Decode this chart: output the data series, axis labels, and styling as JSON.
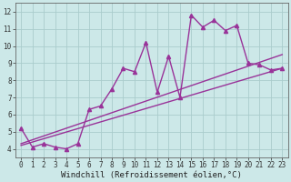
{
  "title": "",
  "xlabel": "Windchill (Refroidissement éolien,°C)",
  "bg_color": "#cce8e8",
  "grid_color": "#aacccc",
  "line_color": "#993399",
  "xlim": [
    -0.5,
    23.5
  ],
  "ylim": [
    3.5,
    12.5
  ],
  "xticks": [
    0,
    1,
    2,
    3,
    4,
    5,
    6,
    7,
    8,
    9,
    10,
    11,
    12,
    13,
    14,
    15,
    16,
    17,
    18,
    19,
    20,
    21,
    22,
    23
  ],
  "yticks": [
    4,
    5,
    6,
    7,
    8,
    9,
    10,
    11,
    12
  ],
  "line1_x": [
    0,
    1,
    2,
    3,
    4,
    5,
    6,
    7,
    8,
    9,
    10,
    11,
    12,
    13,
    14,
    15,
    16,
    17,
    18,
    19,
    20,
    21,
    22,
    23
  ],
  "line1_y": [
    5.2,
    4.1,
    4.3,
    4.1,
    4.0,
    4.3,
    6.3,
    6.5,
    7.5,
    8.7,
    8.5,
    10.2,
    7.3,
    9.4,
    7.0,
    11.8,
    11.1,
    11.5,
    10.9,
    11.2,
    9.0,
    8.9,
    8.6,
    8.7
  ],
  "line2_x": [
    0,
    23
  ],
  "line2_y": [
    4.2,
    8.7
  ],
  "line3_x": [
    0,
    23
  ],
  "line3_y": [
    4.3,
    9.5
  ],
  "marker": "^",
  "markersize": 3,
  "linewidth": 1.0,
  "tick_fontsize": 5.5,
  "xlabel_fontsize": 6.5
}
